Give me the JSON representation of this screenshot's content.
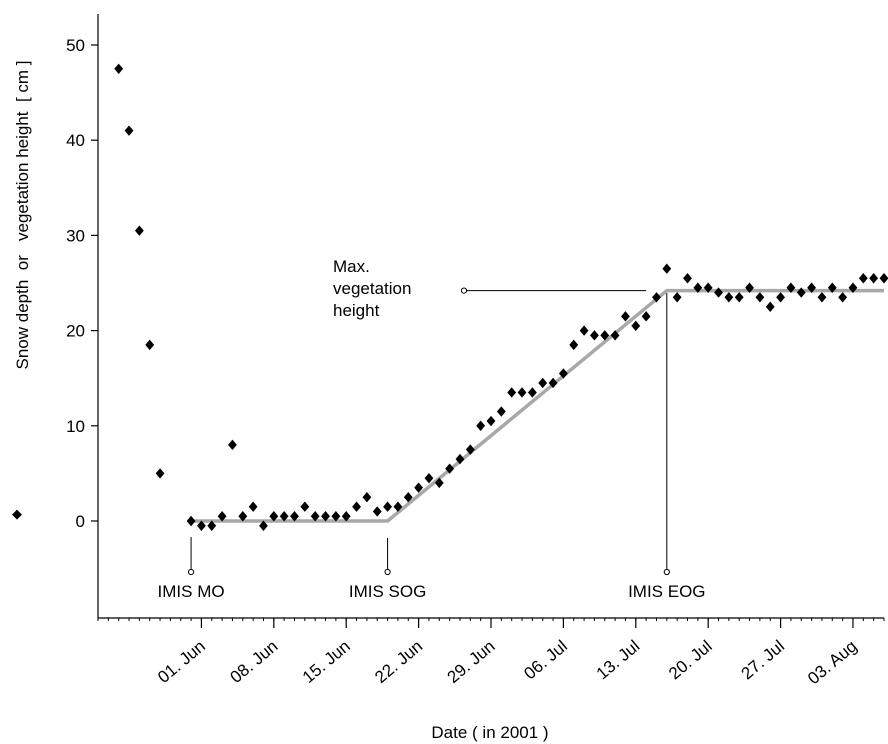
{
  "chart_data": {
    "type": "scatter",
    "xlabel": "Date ( in 2001 )",
    "ylabel": "Snow depth  or   vegetation height  [ cm ]",
    "ylim": [
      0,
      50
    ],
    "xlim": [
      "2001-05-22",
      "2001-08-06"
    ],
    "x_tick_labels": [
      "01. Jun",
      "08. Jun",
      "15. Jun",
      "22. Jun",
      "29. Jun",
      "06. Jul",
      "13. Jul",
      "20. Jul",
      "27. Jul",
      "03. Aug"
    ],
    "x_tick_dates": [
      "2001-06-01",
      "2001-06-08",
      "2001-06-15",
      "2001-06-22",
      "2001-06-29",
      "2001-07-06",
      "2001-07-13",
      "2001-07-20",
      "2001-07-27",
      "2001-08-03"
    ],
    "y_ticks": [
      0,
      10,
      20,
      30,
      40,
      50
    ],
    "grid": false,
    "legend_marker": "◆",
    "colors": {
      "points": "#000000",
      "fit_line": "#a8a8a8",
      "annotations": "#000000"
    },
    "series": [
      {
        "marker": "diamond",
        "x": [
          "2001-05-24",
          "2001-05-25",
          "2001-05-26",
          "2001-05-27",
          "2001-05-28",
          "2001-05-31",
          "2001-06-01",
          "2001-06-02",
          "2001-06-03",
          "2001-06-04",
          "2001-06-05",
          "2001-06-06",
          "2001-06-07",
          "2001-06-08",
          "2001-06-09",
          "2001-06-10",
          "2001-06-11",
          "2001-06-12",
          "2001-06-13",
          "2001-06-14",
          "2001-06-15",
          "2001-06-16",
          "2001-06-17",
          "2001-06-18",
          "2001-06-19",
          "2001-06-20",
          "2001-06-21",
          "2001-06-22",
          "2001-06-23",
          "2001-06-24",
          "2001-06-25",
          "2001-06-26",
          "2001-06-27",
          "2001-06-28",
          "2001-06-29",
          "2001-06-30",
          "2001-07-01",
          "2001-07-02",
          "2001-07-03",
          "2001-07-04",
          "2001-07-05",
          "2001-07-06",
          "2001-07-07",
          "2001-07-08",
          "2001-07-09",
          "2001-07-10",
          "2001-07-11",
          "2001-07-12",
          "2001-07-13",
          "2001-07-14",
          "2001-07-15",
          "2001-07-16",
          "2001-07-17",
          "2001-07-18",
          "2001-07-19",
          "2001-07-20",
          "2001-07-21",
          "2001-07-22",
          "2001-07-23",
          "2001-07-24",
          "2001-07-25",
          "2001-07-26",
          "2001-07-27",
          "2001-07-28",
          "2001-07-29",
          "2001-07-30",
          "2001-07-31",
          "2001-08-01",
          "2001-08-02",
          "2001-08-03",
          "2001-08-04",
          "2001-08-05",
          "2001-08-06"
        ],
        "y": [
          47.5,
          41,
          30.5,
          18.5,
          5,
          0,
          -0.5,
          -0.5,
          0.5,
          8,
          0.5,
          1.5,
          -0.5,
          0.5,
          0.5,
          0.5,
          1.5,
          0.5,
          0.5,
          0.5,
          0.5,
          1.5,
          2.5,
          1,
          1.5,
          1.5,
          2.5,
          3.5,
          4.5,
          4,
          5.5,
          6.5,
          7.5,
          10,
          10.5,
          11.5,
          13.5,
          13.5,
          13.5,
          14.5,
          14.5,
          15.5,
          18.5,
          20,
          19.5,
          19.5,
          19.5,
          21.5,
          20.5,
          21.5,
          23.5,
          26.5,
          23.5,
          25.5,
          24.5,
          24.5,
          24,
          23.5,
          23.5,
          24.5,
          23.5,
          22.5,
          23.5,
          24.5,
          24,
          24.5,
          23.5,
          24.5,
          23.5,
          24.5,
          25.5,
          25.5,
          25.5
        ]
      }
    ],
    "fit_line": {
      "x": [
        "2001-05-31",
        "2001-06-19",
        "2001-07-16",
        "2001-08-06"
      ],
      "y": [
        0,
        0,
        24.2,
        24.2
      ]
    },
    "annotations": [
      {
        "text": "IMIS MO",
        "date": "2001-05-31"
      },
      {
        "text": "IMIS SOG",
        "date": "2001-06-19"
      },
      {
        "text": "IMIS EOG",
        "date": "2001-07-16"
      }
    ],
    "max_annotation": {
      "lines": [
        "Max.",
        "vegetation",
        "height"
      ],
      "y": 24.2
    }
  }
}
